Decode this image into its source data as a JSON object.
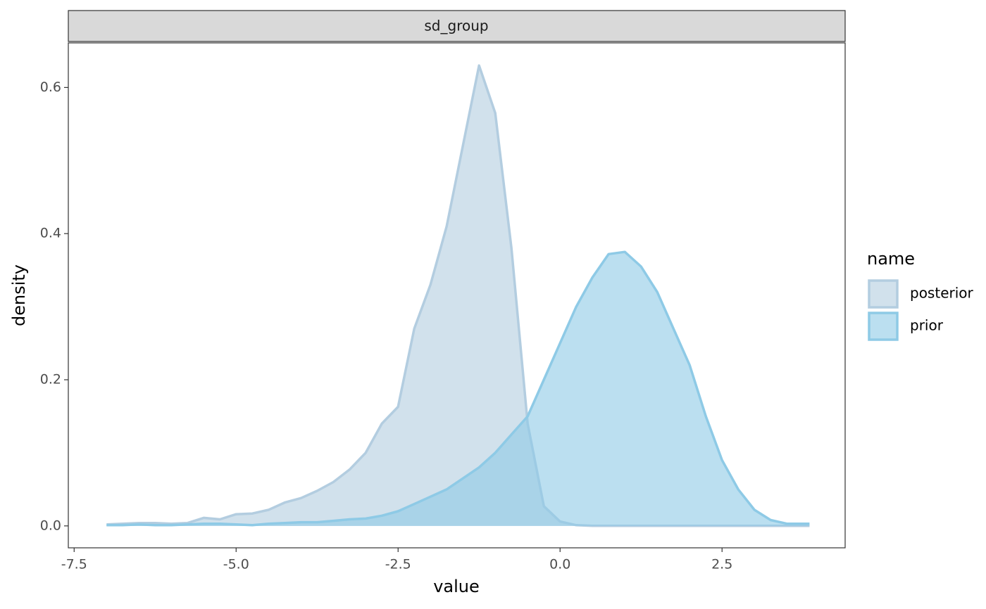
{
  "chart_data": {
    "type": "density",
    "strip": "sd_group",
    "x_label": "value",
    "y_label": "density",
    "legend_title": "name",
    "legend_position": "right",
    "grid": false,
    "xlim": [
      -7.59,
      4.4
    ],
    "ylim": [
      -0.03,
      0.661
    ],
    "xticks": [
      {
        "value": -7.5,
        "label": "-7.5"
      },
      {
        "value": -5,
        "label": "-5.0"
      },
      {
        "value": -2.5,
        "label": "-2.5"
      },
      {
        "value": 0,
        "label": "0.0"
      },
      {
        "value": 2.5,
        "label": "2.5"
      }
    ],
    "yticks": [
      {
        "value": 0,
        "label": "0.0"
      },
      0.2,
      0.4,
      0.6
    ],
    "x": [
      -7,
      -6.75,
      -6.5,
      -6.25,
      -6,
      -5.75,
      -5.5,
      -5.25,
      -5,
      -4.75,
      -4.5,
      -4.25,
      -4,
      -3.75,
      -3.5,
      -3.25,
      -3,
      -2.75,
      -2.5,
      -2.25,
      -2,
      -1.75,
      -1.5,
      -1.25,
      -1,
      -0.75,
      -0.5,
      -0.25,
      0,
      0.25,
      0.5,
      0.75,
      1,
      1.25,
      1.5,
      1.75,
      2,
      2.25,
      2.5,
      2.75,
      3,
      3.25,
      3.5,
      3.75,
      3.85
    ],
    "series": [
      {
        "name": "posterior",
        "color": "#b3cde0",
        "values": [
          0.002,
          0.003,
          0.004,
          0.004,
          0.003,
          0.004,
          0.011,
          0.009,
          0.016,
          0.017,
          0.022,
          0.032,
          0.038,
          0.048,
          0.06,
          0.077,
          0.1,
          0.14,
          0.163,
          0.27,
          0.33,
          0.41,
          0.52,
          0.63,
          0.565,
          0.38,
          0.14,
          0.027,
          0.006,
          0.001,
          0,
          0,
          0,
          0,
          0,
          0,
          0,
          0,
          0,
          0,
          0,
          0,
          0,
          0,
          0
        ]
      },
      {
        "name": "prior",
        "color": "#8ecae6",
        "values": [
          0.001,
          0.001,
          0.002,
          0.001,
          0.001,
          0.002,
          0.003,
          0.003,
          0.002,
          0.001,
          0.003,
          0.004,
          0.005,
          0.005,
          0.007,
          0.009,
          0.01,
          0.014,
          0.02,
          0.03,
          0.04,
          0.05,
          0.065,
          0.08,
          0.1,
          0.125,
          0.15,
          0.2,
          0.25,
          0.3,
          0.34,
          0.372,
          0.375,
          0.355,
          0.32,
          0.27,
          0.22,
          0.15,
          0.09,
          0.05,
          0.022,
          0.008,
          0.003,
          0.003,
          0.003
        ]
      }
    ]
  }
}
